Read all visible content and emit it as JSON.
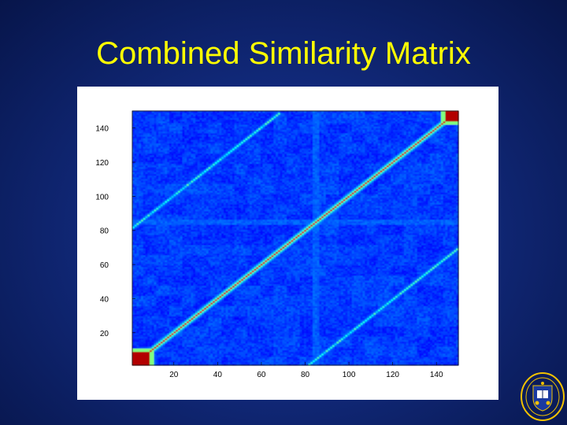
{
  "slide": {
    "title": "Combined Similarity Matrix",
    "background_color": "#11297a",
    "title_color": "#ffff00"
  },
  "chart_data": {
    "type": "heatmap",
    "title": "",
    "xlabel": "",
    "ylabel": "",
    "xlim": [
      1,
      150
    ],
    "ylim": [
      1,
      150
    ],
    "x_ticks": [
      20,
      40,
      60,
      80,
      100,
      120,
      140
    ],
    "y_ticks": [
      20,
      40,
      60,
      80,
      100,
      120,
      140
    ],
    "colormap": "jet",
    "colorbar": false,
    "grid": false,
    "features": {
      "main_diagonal": {
        "from": [
          1,
          1
        ],
        "to": [
          150,
          150
        ],
        "value": "high"
      },
      "parallel_diagonals": [
        {
          "from": [
            82,
            1
          ],
          "to": [
            150,
            68
          ],
          "value": "medium"
        },
        {
          "from": [
            1,
            82
          ],
          "to": [
            68,
            150
          ],
          "value": "medium"
        }
      ],
      "high_blocks": [
        {
          "x": [
            1,
            8
          ],
          "y": [
            1,
            8
          ]
        },
        {
          "x": [
            145,
            150
          ],
          "y": [
            145,
            150
          ]
        }
      ]
    }
  },
  "logo": {
    "name": "university-seal",
    "colors": [
      "#0a1c5a",
      "#f2c200",
      "#ffffff"
    ]
  }
}
